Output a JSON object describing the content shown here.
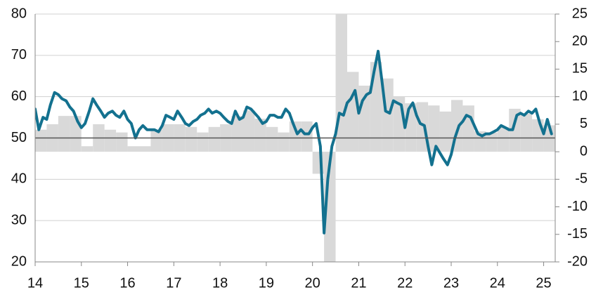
{
  "chart_data": {
    "type": "combo",
    "xlim": [
      2014,
      2025.25
    ],
    "xticks": [
      {
        "value": 2014,
        "label": "14"
      },
      {
        "value": 2015,
        "label": "15"
      },
      {
        "value": 2016,
        "label": "16"
      },
      {
        "value": 2017,
        "label": "17"
      },
      {
        "value": 2018,
        "label": "18"
      },
      {
        "value": 2019,
        "label": "19"
      },
      {
        "value": 2020,
        "label": "20"
      },
      {
        "value": 2021,
        "label": "21"
      },
      {
        "value": 2022,
        "label": "22"
      },
      {
        "value": 2023,
        "label": "23"
      },
      {
        "value": 2024,
        "label": "24"
      },
      {
        "value": 2025,
        "label": "25"
      }
    ],
    "ylim": [
      20,
      80
    ],
    "yticks": [
      20,
      30,
      40,
      50,
      60,
      70,
      80
    ],
    "y2lim": [
      -20,
      25
    ],
    "y2ticks": [
      -20,
      -15,
      -10,
      -5,
      0,
      5,
      10,
      15,
      20,
      25
    ],
    "grid": true,
    "series": [
      {
        "type": "bar",
        "axis": "y2",
        "color": "#d9d9d9",
        "x": [
          2014.125,
          2014.375,
          2014.625,
          2014.875,
          2015.125,
          2015.375,
          2015.625,
          2015.875,
          2016.125,
          2016.375,
          2016.625,
          2016.875,
          2017.125,
          2017.375,
          2017.625,
          2017.875,
          2018.125,
          2018.375,
          2018.625,
          2018.875,
          2019.125,
          2019.375,
          2019.625,
          2019.875,
          2020.125,
          2020.375,
          2020.625,
          2020.875,
          2021.125,
          2021.375,
          2021.625,
          2021.875,
          2022.125,
          2022.375,
          2022.625,
          2022.875,
          2023.125,
          2023.375,
          2023.625,
          2023.875,
          2024.125,
          2024.375,
          2024.625,
          2024.875,
          2025.125
        ],
        "values": [
          4,
          5,
          6.5,
          6.5,
          1,
          5,
          4,
          3.5,
          1,
          1,
          4,
          5,
          5,
          4.5,
          3.5,
          4.5,
          5,
          6.5,
          7.5,
          6,
          4.5,
          3.5,
          5.5,
          5.5,
          -4,
          -21,
          27,
          14.5,
          12,
          16.3,
          13.3,
          10,
          8.8,
          9,
          8.4,
          7.3,
          9.4,
          8.4,
          3.7,
          3.5,
          4.5,
          7.8,
          6.9,
          5.9,
          4.8
        ]
      },
      {
        "type": "line",
        "color": "#13718f",
        "x": [
          2014,
          2014.08,
          2014.17,
          2014.25,
          2014.33,
          2014.42,
          2014.5,
          2014.58,
          2014.67,
          2014.75,
          2014.83,
          2014.92,
          2015,
          2015.08,
          2015.17,
          2015.25,
          2015.33,
          2015.42,
          2015.5,
          2015.58,
          2015.67,
          2015.75,
          2015.83,
          2015.92,
          2016,
          2016.08,
          2016.17,
          2016.25,
          2016.33,
          2016.42,
          2016.5,
          2016.58,
          2016.67,
          2016.75,
          2016.83,
          2016.92,
          2017,
          2017.08,
          2017.17,
          2017.25,
          2017.33,
          2017.42,
          2017.5,
          2017.58,
          2017.67,
          2017.75,
          2017.83,
          2017.92,
          2018,
          2018.08,
          2018.17,
          2018.25,
          2018.33,
          2018.42,
          2018.5,
          2018.58,
          2018.67,
          2018.75,
          2018.83,
          2018.92,
          2019,
          2019.08,
          2019.17,
          2019.25,
          2019.33,
          2019.42,
          2019.5,
          2019.58,
          2019.67,
          2019.75,
          2019.83,
          2019.92,
          2020,
          2020.08,
          2020.17,
          2020.25,
          2020.33,
          2020.42,
          2020.5,
          2020.58,
          2020.67,
          2020.75,
          2020.83,
          2020.92,
          2021,
          2021.08,
          2021.17,
          2021.25,
          2021.33,
          2021.42,
          2021.5,
          2021.58,
          2021.67,
          2021.75,
          2021.83,
          2021.92,
          2022,
          2022.08,
          2022.17,
          2022.25,
          2022.33,
          2022.42,
          2022.5,
          2022.58,
          2022.67,
          2022.75,
          2022.83,
          2022.92,
          2023,
          2023.08,
          2023.17,
          2023.25,
          2023.33,
          2023.42,
          2023.5,
          2023.58,
          2023.67,
          2023.75,
          2023.83,
          2023.92,
          2024,
          2024.08,
          2024.17,
          2024.25,
          2024.33,
          2024.42,
          2024.5,
          2024.58,
          2024.67,
          2024.75,
          2024.83,
          2024.92,
          2025,
          2025.08,
          2025.17
        ],
        "values": [
          57,
          52,
          55,
          54.5,
          58,
          61,
          60.5,
          59.5,
          59,
          57.5,
          56.5,
          54,
          52.5,
          53.5,
          56.5,
          59.5,
          58,
          56.5,
          55,
          56,
          56.5,
          55.5,
          55,
          56.5,
          54.5,
          53.5,
          50,
          52,
          53,
          52,
          52,
          52,
          51.5,
          53,
          55.5,
          55,
          54.5,
          56.5,
          55,
          53.5,
          53,
          54,
          54.5,
          55.5,
          56,
          57,
          56,
          56.5,
          56,
          55,
          54,
          53.5,
          56.5,
          54.5,
          55,
          57.5,
          57,
          56,
          55,
          53.5,
          54,
          55.5,
          55.5,
          55,
          55,
          57,
          56,
          53.5,
          51,
          52,
          51,
          51,
          52.5,
          53.5,
          48,
          27,
          40,
          48,
          51,
          56,
          55.5,
          58.5,
          59.5,
          61.5,
          56,
          59,
          60.5,
          61,
          66,
          71,
          64,
          56.5,
          56,
          59,
          58.5,
          58,
          52.5,
          57,
          58.5,
          55.5,
          53.5,
          53,
          48,
          43.5,
          48,
          46.5,
          45,
          43.5,
          46,
          50,
          53,
          54,
          55.5,
          55,
          53,
          51,
          50.5,
          51,
          51,
          51.5,
          52,
          53,
          52.5,
          52,
          52,
          55.5,
          56,
          55.5,
          56.5,
          56,
          57,
          53.5,
          51,
          54.5,
          51
        ]
      }
    ]
  }
}
